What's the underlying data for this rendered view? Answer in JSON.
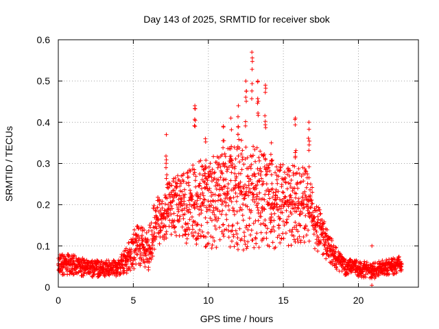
{
  "chart_data": {
    "type": "scatter",
    "title": "Day 143 of 2025, SRMTID for receiver sbok",
    "xlabel": "GPS time / hours",
    "ylabel": "SRMTID / TECUs",
    "xlim": [
      0,
      24
    ],
    "ylim": [
      0,
      0.6
    ],
    "xticks": [
      "0",
      "5",
      "10",
      "15",
      "20"
    ],
    "xtick_values": [
      0,
      5,
      10,
      15,
      20
    ],
    "yticks": [
      "0",
      "0.1",
      "0.2",
      "0.3",
      "0.4",
      "0.5",
      "0.6"
    ],
    "ytick_values": [
      0,
      0.1,
      0.2,
      0.3,
      0.4,
      0.5,
      0.6
    ],
    "grid": true,
    "marker": "+",
    "series_color": "#ff0000",
    "envelope": [
      {
        "hour": 0.0,
        "base": 0.055,
        "spread": 0.025
      },
      {
        "hour": 1.0,
        "base": 0.055,
        "spread": 0.025
      },
      {
        "hour": 2.0,
        "base": 0.045,
        "spread": 0.02
      },
      {
        "hour": 3.0,
        "base": 0.045,
        "spread": 0.02
      },
      {
        "hour": 4.0,
        "base": 0.045,
        "spread": 0.02
      },
      {
        "hour": 4.7,
        "base": 0.07,
        "spread": 0.04
      },
      {
        "hour": 5.2,
        "base": 0.1,
        "spread": 0.05
      },
      {
        "hour": 6.0,
        "base": 0.09,
        "spread": 0.05
      },
      {
        "hour": 6.5,
        "base": 0.16,
        "spread": 0.06
      },
      {
        "hour": 7.5,
        "base": 0.19,
        "spread": 0.07
      },
      {
        "hour": 9.0,
        "base": 0.2,
        "spread": 0.1
      },
      {
        "hour": 11.0,
        "base": 0.21,
        "spread": 0.12
      },
      {
        "hour": 12.8,
        "base": 0.23,
        "spread": 0.14
      },
      {
        "hour": 14.0,
        "base": 0.2,
        "spread": 0.11
      },
      {
        "hour": 15.5,
        "base": 0.2,
        "spread": 0.1
      },
      {
        "hour": 16.5,
        "base": 0.2,
        "spread": 0.09
      },
      {
        "hour": 17.5,
        "base": 0.13,
        "spread": 0.05
      },
      {
        "hour": 18.3,
        "base": 0.08,
        "spread": 0.03
      },
      {
        "hour": 19.0,
        "base": 0.05,
        "spread": 0.02
      },
      {
        "hour": 21.0,
        "base": 0.04,
        "spread": 0.02
      },
      {
        "hour": 22.8,
        "base": 0.055,
        "spread": 0.02
      }
    ],
    "peaks": [
      {
        "hour": 7.2,
        "value": 0.37
      },
      {
        "hour": 9.1,
        "value": 0.44
      },
      {
        "hour": 9.8,
        "value": 0.36
      },
      {
        "hour": 11.0,
        "value": 0.39
      },
      {
        "hour": 11.5,
        "value": 0.41
      },
      {
        "hour": 12.0,
        "value": 0.44
      },
      {
        "hour": 12.5,
        "value": 0.5
      },
      {
        "hour": 12.9,
        "value": 0.57
      },
      {
        "hour": 13.3,
        "value": 0.5
      },
      {
        "hour": 13.8,
        "value": 0.49
      },
      {
        "hour": 14.2,
        "value": 0.35
      },
      {
        "hour": 15.8,
        "value": 0.41
      },
      {
        "hour": 16.7,
        "value": 0.4
      },
      {
        "hour": 20.9,
        "value": 0.1
      }
    ],
    "point_count": 2200,
    "hour_range": [
      0,
      22.9
    ]
  }
}
